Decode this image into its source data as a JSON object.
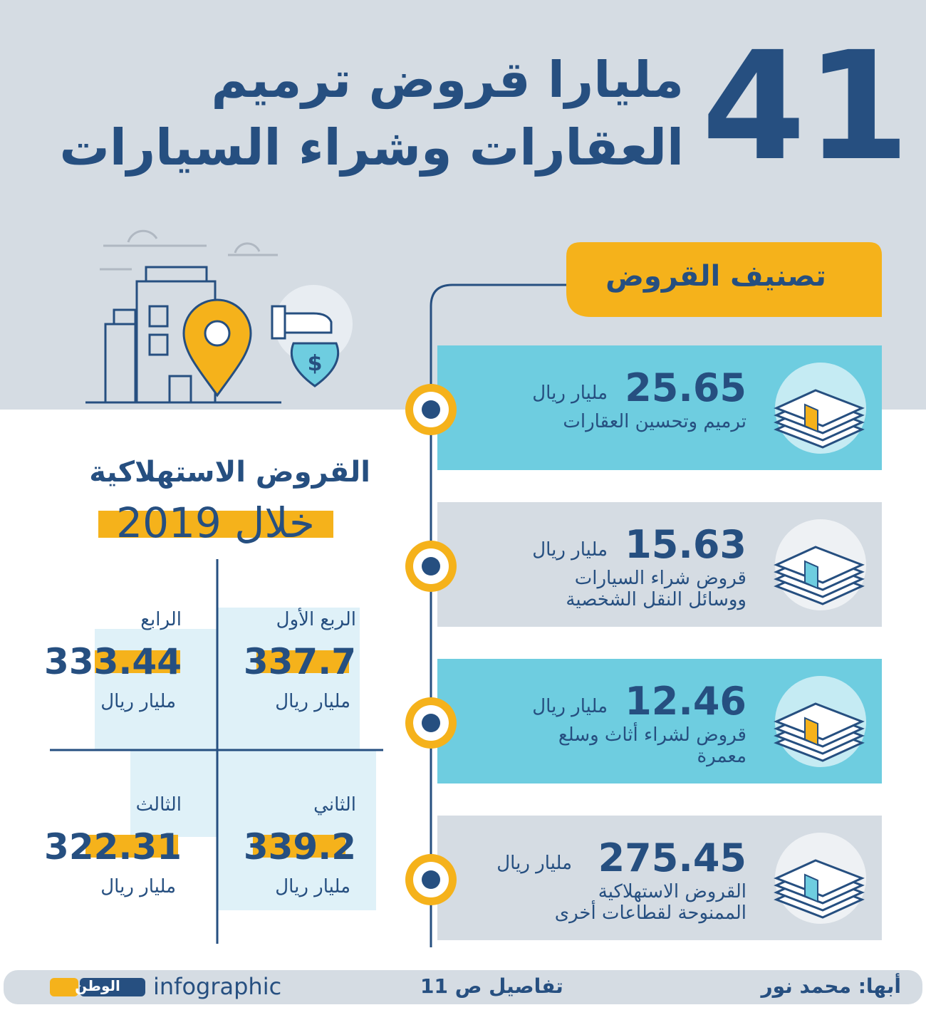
{
  "header": {
    "number": 41,
    "title_lines": [
      "مليارا قروض ترميم",
      "العقارات وشراء السيارات"
    ]
  },
  "classification": {
    "title": "تصنيف القروض",
    "unit": "مليار ريال",
    "items": [
      {
        "amount": 25.65,
        "lines": [
          "ترميم وتحسين العقارات"
        ]
      },
      {
        "amount": 15.63,
        "lines": [
          "قروض شراء السيارات",
          "ووسائل النقل الشخصية"
        ]
      },
      {
        "amount": 12.46,
        "lines": [
          "قروض لشراء أثاث وسلع",
          "معمرة"
        ]
      },
      {
        "amount": 275.45,
        "lines": [
          "القروض الاستهلاكية",
          "الممنوحة لقطاعات أخرى"
        ]
      }
    ]
  },
  "consumer": {
    "title": "القروض الاستهلاكية",
    "subtitle": "خلال 2019",
    "unit": "مليار ريال",
    "quarters": [
      {
        "label": "الربع الأول",
        "value": 337.7
      },
      {
        "label": "الثاني",
        "value": 339.2
      },
      {
        "label": "الثالث",
        "value": 322.31
      },
      {
        "label": "الرابع",
        "value": 333.44
      }
    ]
  },
  "footer": {
    "author": "أبها: محمد نور",
    "details": "تفاصيل ص 11",
    "brand": "infographic",
    "logo": "الوطن"
  }
}
